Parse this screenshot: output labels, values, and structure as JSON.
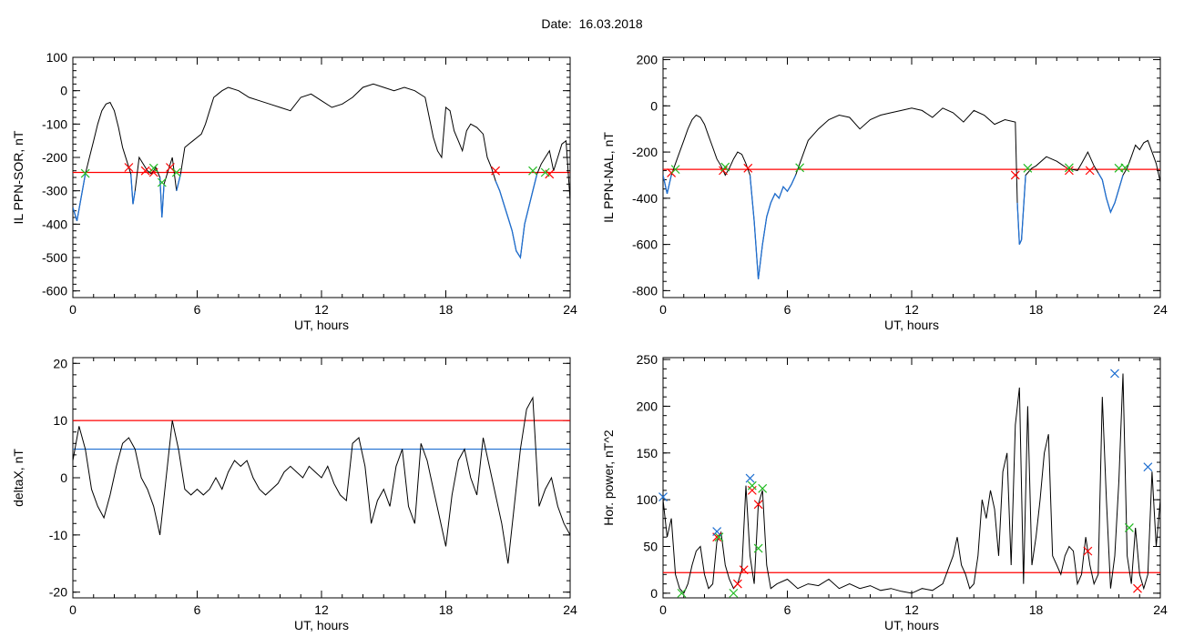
{
  "header": {
    "date_label": "Date:",
    "date_value": "16.03.2018"
  },
  "colors": {
    "data_line": "#000000",
    "threshold_red": "#ff0000",
    "threshold_blue": "#1f6fd1",
    "highlight_blue": "#1f6fd1",
    "marker_red": "#ff0000",
    "marker_green": "#22bb22",
    "marker_blue": "#1f6fd1"
  },
  "chart_data": [
    {
      "id": "ppn-sor",
      "type": "line",
      "ylabel": "IL PPN-SOR, nT",
      "xlabel": "UT, hours",
      "xlim": [
        0,
        24
      ],
      "ylim": [
        -620,
        100
      ],
      "xticks": [
        0,
        6,
        12,
        18,
        24
      ],
      "yticks": [
        100,
        0,
        -100,
        -200,
        -300,
        -400,
        -500,
        -600
      ],
      "threshold": -245,
      "series": [
        {
          "x": [
            0,
            0.2,
            0.4,
            0.6,
            0.8,
            1,
            1.2,
            1.4,
            1.6,
            1.8,
            2,
            2.2,
            2.4,
            2.6,
            2.8,
            2.9,
            3.0,
            3.2,
            3.4,
            3.6,
            3.8,
            4.0,
            4.2,
            4.3,
            4.4,
            4.6,
            4.8,
            5.0,
            5.2,
            5.4,
            5.6,
            5.8,
            6.0,
            6.2,
            6.4,
            6.6,
            6.8,
            7.0,
            7.2,
            7.5,
            8,
            8.5,
            9,
            9.5,
            10,
            10.5,
            11,
            11.5,
            12,
            12.5,
            13,
            13.5,
            14,
            14.5,
            15,
            15.5,
            16,
            16.5,
            17,
            17.2,
            17.4,
            17.6,
            17.8,
            18,
            18.2,
            18.4,
            18.6,
            18.8,
            19,
            19.2,
            19.5,
            19.8,
            20,
            20.2,
            20.4,
            20.6,
            20.8,
            21.0,
            21.2,
            21.4,
            21.6,
            21.8,
            22.0,
            22.2,
            22.4,
            22.6,
            22.8,
            23.0,
            23.2,
            23.4,
            23.6,
            23.8,
            24
          ],
          "y": [
            -350,
            -390,
            -320,
            -250,
            -200,
            -150,
            -100,
            -60,
            -40,
            -35,
            -60,
            -110,
            -170,
            -210,
            -250,
            -340,
            -300,
            -200,
            -220,
            -240,
            -250,
            -230,
            -260,
            -380,
            -280,
            -240,
            -200,
            -300,
            -250,
            -170,
            -160,
            -150,
            -140,
            -130,
            -100,
            -60,
            -20,
            -10,
            0,
            10,
            0,
            -20,
            -30,
            -40,
            -50,
            -60,
            -20,
            -10,
            -30,
            -50,
            -40,
            -20,
            10,
            20,
            10,
            0,
            10,
            0,
            -20,
            -80,
            -140,
            -180,
            -200,
            -50,
            -60,
            -120,
            -150,
            -180,
            -120,
            -100,
            -110,
            -130,
            -200,
            -230,
            -270,
            -300,
            -340,
            -380,
            -420,
            -480,
            -500,
            -400,
            -350,
            -300,
            -250,
            -220,
            -200,
            -180,
            -240,
            -200,
            -160,
            -150,
            -330
          ]
        }
      ],
      "markers": {
        "red": [
          [
            2.7,
            -230
          ],
          [
            3.5,
            -240
          ],
          [
            3.9,
            -245
          ],
          [
            4.7,
            -230
          ],
          [
            20.4,
            -240
          ],
          [
            23.0,
            -250
          ]
        ],
        "green": [
          [
            0.6,
            -248
          ],
          [
            3.9,
            -232
          ],
          [
            4.3,
            -275
          ],
          [
            5.0,
            -245
          ],
          [
            22.2,
            -240
          ],
          [
            22.8,
            -245
          ]
        ]
      }
    },
    {
      "id": "ppn-nal",
      "type": "line",
      "ylabel": "IL PPN-NAL, nT",
      "xlabel": "UT, hours",
      "xlim": [
        0,
        24
      ],
      "ylim": [
        -830,
        210
      ],
      "xticks": [
        0,
        6,
        12,
        18,
        24
      ],
      "yticks": [
        200,
        0,
        -200,
        -400,
        -600,
        -800
      ],
      "threshold": -275,
      "series": [
        {
          "x": [
            0,
            0.2,
            0.4,
            0.6,
            0.8,
            1,
            1.2,
            1.4,
            1.6,
            1.8,
            2,
            2.2,
            2.4,
            2.6,
            2.8,
            3.0,
            3.2,
            3.4,
            3.6,
            3.8,
            4.0,
            4.2,
            4.4,
            4.6,
            4.8,
            5.0,
            5.2,
            5.4,
            5.6,
            5.8,
            6.0,
            6.2,
            6.4,
            6.6,
            6.8,
            7.0,
            7.5,
            8,
            8.5,
            9,
            9.5,
            10,
            10.5,
            11,
            11.5,
            12,
            12.5,
            13,
            13.5,
            14,
            14.5,
            15,
            15.5,
            16,
            16.5,
            17,
            17.1,
            17.2,
            17.3,
            17.5,
            17.8,
            18,
            18.5,
            19,
            19.5,
            20,
            20.2,
            20.5,
            20.8,
            21,
            21.2,
            21.4,
            21.6,
            21.8,
            22,
            22.2,
            22.4,
            22.6,
            22.8,
            23,
            23.2,
            23.4,
            23.6,
            23.8,
            24
          ],
          "y": [
            -300,
            -380,
            -300,
            -250,
            -200,
            -150,
            -100,
            -60,
            -40,
            -50,
            -80,
            -130,
            -180,
            -230,
            -260,
            -300,
            -270,
            -230,
            -200,
            -210,
            -250,
            -300,
            -500,
            -750,
            -600,
            -480,
            -420,
            -380,
            -400,
            -350,
            -370,
            -340,
            -300,
            -250,
            -200,
            -150,
            -100,
            -60,
            -40,
            -50,
            -100,
            -60,
            -40,
            -30,
            -20,
            -10,
            -20,
            -50,
            -10,
            -30,
            -70,
            -20,
            -40,
            -80,
            -60,
            -70,
            -420,
            -600,
            -580,
            -300,
            -270,
            -260,
            -220,
            -240,
            -270,
            -280,
            -250,
            -200,
            -260,
            -290,
            -320,
            -400,
            -460,
            -420,
            -360,
            -300,
            -270,
            -220,
            -170,
            -190,
            -160,
            -150,
            -200,
            -250,
            -330
          ]
        }
      ],
      "markers": {
        "red": [
          [
            0.4,
            -290
          ],
          [
            2.9,
            -280
          ],
          [
            4.1,
            -270
          ],
          [
            17.0,
            -300
          ],
          [
            19.6,
            -280
          ],
          [
            20.6,
            -280
          ]
        ],
        "green": [
          [
            0.6,
            -275
          ],
          [
            3.0,
            -265
          ],
          [
            6.6,
            -268
          ],
          [
            17.6,
            -270
          ],
          [
            19.6,
            -268
          ],
          [
            22.0,
            -270
          ],
          [
            22.3,
            -268
          ]
        ]
      }
    },
    {
      "id": "deltax",
      "type": "line",
      "ylabel": "deltaX, nT",
      "xlabel": "UT, hours",
      "xlim": [
        0,
        24
      ],
      "ylim": [
        -21,
        21
      ],
      "xticks": [
        0,
        6,
        12,
        18,
        24
      ],
      "yticks": [
        20,
        10,
        0,
        -10,
        -20
      ],
      "thresholds": [
        10,
        5
      ],
      "series": [
        {
          "x": [
            0,
            0.3,
            0.6,
            0.9,
            1.2,
            1.5,
            1.8,
            2.1,
            2.4,
            2.7,
            3.0,
            3.3,
            3.6,
            3.9,
            4.2,
            4.5,
            4.8,
            5.1,
            5.4,
            5.7,
            6.0,
            6.3,
            6.6,
            6.9,
            7.2,
            7.5,
            7.8,
            8.1,
            8.4,
            8.7,
            9.0,
            9.3,
            9.6,
            9.9,
            10.2,
            10.5,
            10.8,
            11.1,
            11.4,
            11.7,
            12.0,
            12.3,
            12.6,
            12.9,
            13.2,
            13.5,
            13.8,
            14.1,
            14.4,
            14.7,
            15.0,
            15.3,
            15.6,
            15.9,
            16.2,
            16.5,
            16.8,
            17.1,
            17.4,
            17.7,
            18.0,
            18.3,
            18.6,
            18.9,
            19.2,
            19.5,
            19.8,
            20.1,
            20.4,
            20.7,
            21.0,
            21.3,
            21.6,
            21.9,
            22.2,
            22.5,
            22.8,
            23.1,
            23.4,
            23.7,
            24
          ],
          "y": [
            3,
            9,
            5,
            -2,
            -5,
            -7,
            -3,
            2,
            6,
            7,
            5,
            0,
            -2,
            -5,
            -10,
            0,
            10,
            5,
            -2,
            -3,
            -2,
            -3,
            -2,
            0,
            -2,
            1,
            3,
            2,
            3,
            0,
            -2,
            -3,
            -2,
            -1,
            1,
            2,
            1,
            0,
            2,
            1,
            0,
            2,
            -1,
            -3,
            -4,
            6,
            7,
            2,
            -8,
            -4,
            -2,
            -5,
            2,
            5,
            -5,
            -8,
            6,
            3,
            -2,
            -7,
            -12,
            -3,
            3,
            5,
            0,
            -3,
            7,
            2,
            -3,
            -8,
            -15,
            -5,
            5,
            12,
            14,
            -5,
            -2,
            0,
            -5,
            -8,
            -10
          ]
        }
      ]
    },
    {
      "id": "hor-power",
      "type": "line",
      "ylabel": "Hor. power, nT^2",
      "xlabel": "UT, hours",
      "xlim": [
        0,
        24
      ],
      "ylim": [
        -5,
        252
      ],
      "xticks": [
        0,
        6,
        12,
        18,
        24
      ],
      "yticks": [
        250,
        200,
        150,
        100,
        50,
        0
      ],
      "threshold": 22,
      "series": [
        {
          "x": [
            0,
            0.2,
            0.4,
            0.6,
            0.8,
            1.0,
            1.2,
            1.4,
            1.6,
            1.8,
            2.0,
            2.2,
            2.4,
            2.6,
            2.8,
            3.0,
            3.2,
            3.4,
            3.6,
            3.8,
            4.0,
            4.2,
            4.4,
            4.6,
            4.8,
            5.0,
            5.2,
            5.5,
            6.0,
            6.5,
            7.0,
            7.5,
            8.0,
            8.5,
            9.0,
            9.5,
            10,
            10.5,
            11,
            11.5,
            12,
            12.5,
            13,
            13.5,
            14,
            14.2,
            14.4,
            14.6,
            14.8,
            15,
            15.2,
            15.4,
            15.6,
            15.8,
            16,
            16.2,
            16.4,
            16.6,
            16.8,
            17,
            17.2,
            17.4,
            17.6,
            17.8,
            18,
            18.2,
            18.4,
            18.6,
            18.8,
            19,
            19.2,
            19.4,
            19.6,
            19.8,
            20,
            20.2,
            20.4,
            20.6,
            20.8,
            21,
            21.2,
            21.4,
            21.6,
            21.8,
            22,
            22.2,
            22.4,
            22.6,
            22.8,
            23,
            23.2,
            23.4,
            23.6,
            23.8,
            24
          ],
          "y": [
            100,
            60,
            80,
            20,
            5,
            0,
            10,
            30,
            45,
            50,
            20,
            5,
            10,
            55,
            65,
            30,
            15,
            5,
            10,
            25,
            115,
            40,
            10,
            95,
            110,
            30,
            5,
            10,
            15,
            5,
            10,
            8,
            15,
            5,
            10,
            5,
            8,
            3,
            5,
            2,
            0,
            5,
            3,
            10,
            40,
            60,
            30,
            20,
            5,
            10,
            40,
            100,
            80,
            110,
            90,
            40,
            130,
            150,
            30,
            180,
            220,
            10,
            200,
            30,
            60,
            100,
            150,
            170,
            40,
            30,
            20,
            40,
            50,
            45,
            10,
            20,
            60,
            30,
            10,
            20,
            210,
            100,
            5,
            40,
            120,
            235,
            40,
            10,
            70,
            20,
            5,
            20,
            130,
            50,
            100
          ]
        }
      ],
      "markers": {
        "red": [
          [
            2.6,
            60
          ],
          [
            3.6,
            10
          ],
          [
            3.9,
            25
          ],
          [
            4.3,
            110
          ],
          [
            4.6,
            95
          ],
          [
            20.5,
            45
          ],
          [
            22.9,
            5
          ]
        ],
        "green": [
          [
            0.9,
            0
          ],
          [
            2.7,
            60
          ],
          [
            3.4,
            0
          ],
          [
            4.3,
            115
          ],
          [
            4.6,
            48
          ],
          [
            4.8,
            112
          ],
          [
            22.5,
            70
          ]
        ],
        "blue": [
          [
            0.0,
            103
          ],
          [
            2.6,
            66
          ],
          [
            4.2,
            123
          ],
          [
            21.8,
            235
          ],
          [
            23.4,
            135
          ]
        ]
      }
    }
  ]
}
